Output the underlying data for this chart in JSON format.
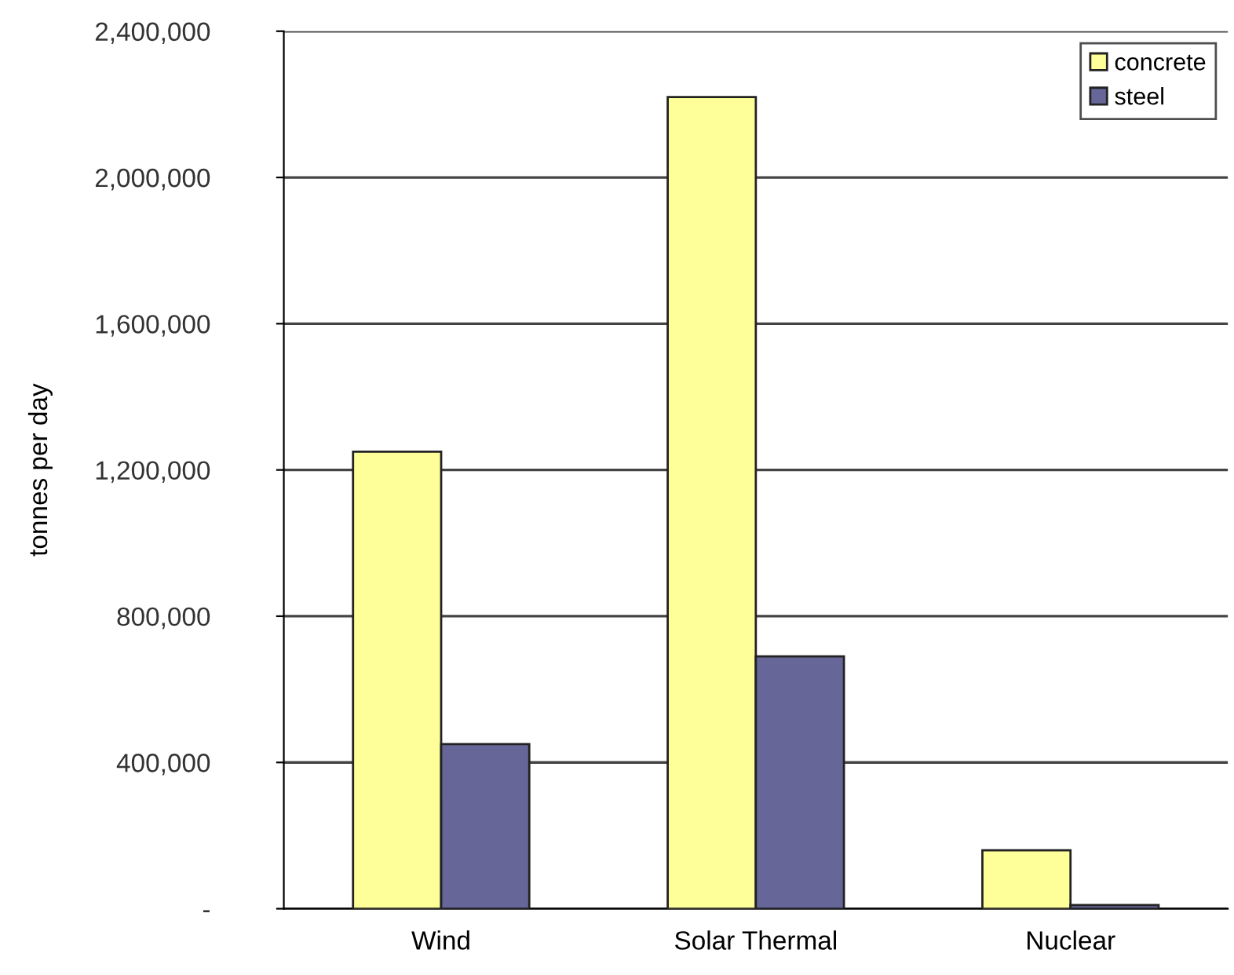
{
  "chart_data": {
    "type": "bar",
    "ylabel": "tonnes per day",
    "categories": [
      "Wind",
      "Solar Thermal",
      "Nuclear"
    ],
    "series": [
      {
        "name": "concrete",
        "color": "#ffff99",
        "values": [
          1250000,
          2220000,
          160000
        ]
      },
      {
        "name": "steel",
        "color": "#666699",
        "values": [
          450000,
          690000,
          10000
        ]
      }
    ],
    "ylim": [
      0,
      2400000
    ],
    "yticks": [
      {
        "value": 0,
        "label": "-"
      },
      {
        "value": 400000,
        "label": "400,000"
      },
      {
        "value": 800000,
        "label": "800,000"
      },
      {
        "value": 1200000,
        "label": "1,200,000"
      },
      {
        "value": 1600000,
        "label": "1,600,000"
      },
      {
        "value": 2000000,
        "label": "2,000,000"
      },
      {
        "value": 2400000,
        "label": "2,400,000"
      }
    ],
    "grid": "y",
    "legend": "top right"
  }
}
